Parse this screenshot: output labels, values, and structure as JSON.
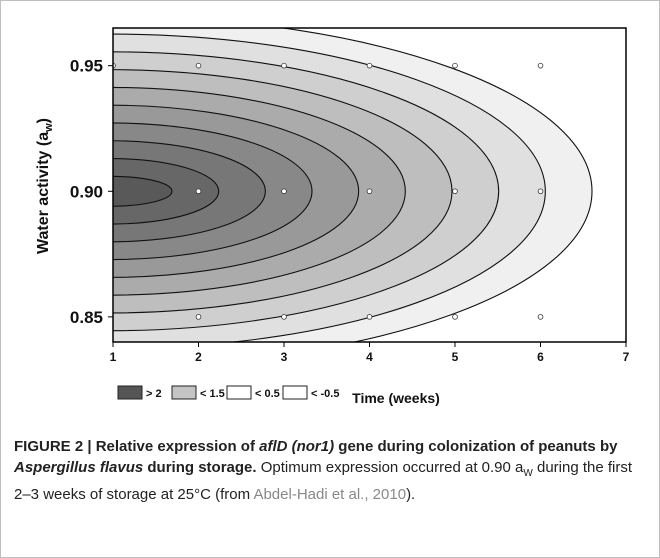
{
  "chart_data": {
    "type": "contour",
    "xlabel": "Time (weeks)",
    "ylabel": "Water activity (aw)",
    "ylabel_main": "Water activity (a",
    "ylabel_sub": "w",
    "ylabel_close": ")",
    "xlim": [
      1,
      7
    ],
    "ylim": [
      0.84,
      0.965
    ],
    "x_ticks": [
      "1",
      "2",
      "3",
      "4",
      "5",
      "6",
      "7"
    ],
    "y_ticks": [
      "0.95",
      "0.90",
      "0.85"
    ],
    "legend": [
      {
        "label": "> 2",
        "color": "#555555"
      },
      {
        "label": "< 1.5",
        "color": "#c4c4c4"
      },
      {
        "label": "< 0.5",
        "color": "#ffffff"
      },
      {
        "label": "< -0.5",
        "color": "#ffffff"
      }
    ],
    "level_colors": [
      "#ffffff",
      "#f0f0f0",
      "#e0e0e0",
      "#cfcfcf",
      "#bebebe",
      "#ababab",
      "#999999",
      "#888888",
      "#777777",
      "#676767",
      "#595959"
    ],
    "sample_points": [
      {
        "x": 1,
        "y": 0.95
      },
      {
        "x": 2,
        "y": 0.95
      },
      {
        "x": 3,
        "y": 0.95
      },
      {
        "x": 4,
        "y": 0.95
      },
      {
        "x": 5,
        "y": 0.95
      },
      {
        "x": 6,
        "y": 0.95
      },
      {
        "x": 2,
        "y": 0.9
      },
      {
        "x": 3,
        "y": 0.9
      },
      {
        "x": 4,
        "y": 0.9
      },
      {
        "x": 5,
        "y": 0.9
      },
      {
        "x": 6,
        "y": 0.9
      },
      {
        "x": 2,
        "y": 0.85
      },
      {
        "x": 3,
        "y": 0.85
      },
      {
        "x": 4,
        "y": 0.85
      },
      {
        "x": 5,
        "y": 0.85
      },
      {
        "x": 6,
        "y": 0.85
      }
    ]
  },
  "caption": {
    "title_1": "FIGURE 2 | Relative expression of ",
    "title_gene": "aflD (nor1)",
    "title_2": " gene during colonization of peanuts by ",
    "title_species": "Aspergillus flavus",
    "title_3": " during storage.",
    "text_1": " Optimum expression occurred at 0.90 a",
    "text_sub": "W",
    "text_2": " during the first 2–3 weeks of storage at 25°C (from ",
    "citation": "Abdel-Hadi et al., 2010",
    "text_end": ")."
  }
}
